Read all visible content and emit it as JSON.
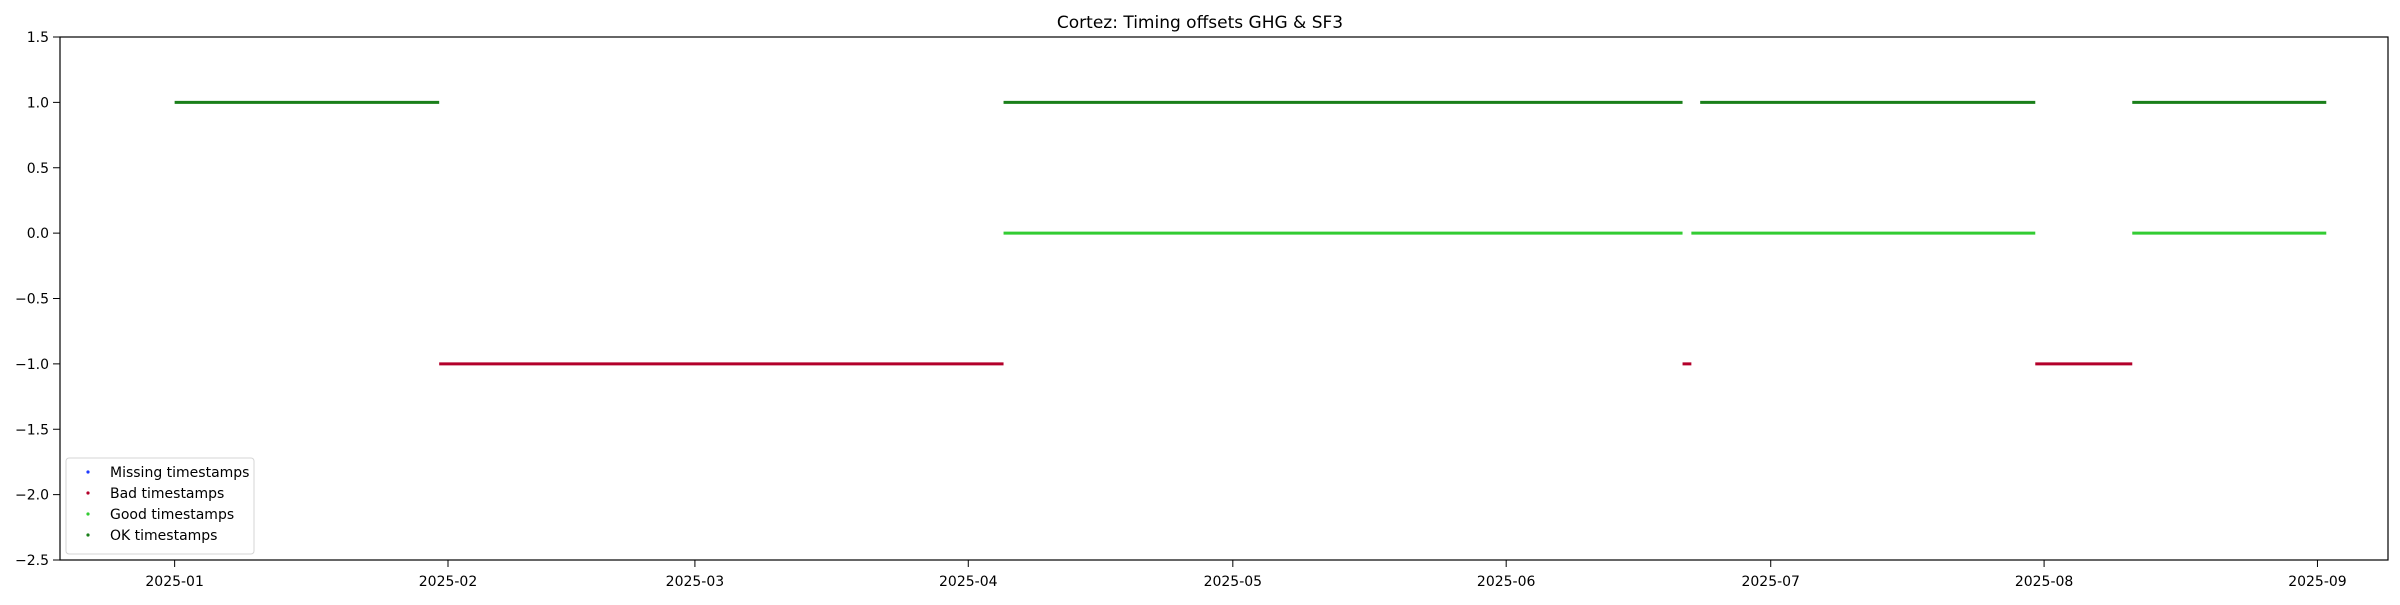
{
  "chart_data": {
    "type": "scatter",
    "title": "Cortez: Timing offsets GHG & SF3",
    "xlabel": "",
    "ylabel": "",
    "x_axis_type": "date",
    "xlim": [
      "2024-12-19",
      "2025-09-09"
    ],
    "ylim": [
      -2.5,
      1.5
    ],
    "x_ticks": [
      "2025-01-01",
      "2025-02-01",
      "2025-03-01",
      "2025-04-01",
      "2025-05-01",
      "2025-06-01",
      "2025-07-01",
      "2025-08-01",
      "2025-09-01"
    ],
    "x_tick_labels": [
      "2025-01",
      "2025-02",
      "2025-03",
      "2025-04",
      "2025-05",
      "2025-06",
      "2025-07",
      "2025-08",
      "2025-09"
    ],
    "y_ticks": [
      1.5,
      1.0,
      0.5,
      0.0,
      -0.5,
      -1.0,
      -1.5,
      -2.0,
      -2.5
    ],
    "y_tick_labels": [
      "1.5",
      "1.0",
      "0.5",
      "0.0",
      "−0.5",
      "−1.0",
      "−1.5",
      "−2.0",
      "−2.5"
    ],
    "grid": false,
    "legend_position": "lower-left",
    "series": [
      {
        "name": "Missing timestamps",
        "color": "#1f3bff",
        "segments": []
      },
      {
        "name": "Bad timestamps",
        "color": "#b3002a",
        "segments": [
          {
            "start": "2025-01-31",
            "end": "2025-04-05",
            "y": -1.0
          },
          {
            "start": "2025-06-21",
            "end": "2025-06-22",
            "y": -1.0
          },
          {
            "start": "2025-07-31",
            "end": "2025-08-11",
            "y": -1.0
          }
        ]
      },
      {
        "name": "Good timestamps",
        "color": "#33cc33",
        "segments": [
          {
            "start": "2025-04-05",
            "end": "2025-06-21",
            "y": 0.0
          },
          {
            "start": "2025-06-22",
            "end": "2025-07-31",
            "y": 0.0
          },
          {
            "start": "2025-08-11",
            "end": "2025-09-02",
            "y": 0.0
          }
        ]
      },
      {
        "name": "OK timestamps",
        "color": "#1a7f1a",
        "segments": [
          {
            "start": "2025-01-01",
            "end": "2025-01-31",
            "y": 1.0
          },
          {
            "start": "2025-04-05",
            "end": "2025-06-21",
            "y": 1.0
          },
          {
            "start": "2025-06-23",
            "end": "2025-07-31",
            "y": 1.0
          },
          {
            "start": "2025-08-11",
            "end": "2025-09-02",
            "y": 1.0
          }
        ]
      }
    ]
  }
}
